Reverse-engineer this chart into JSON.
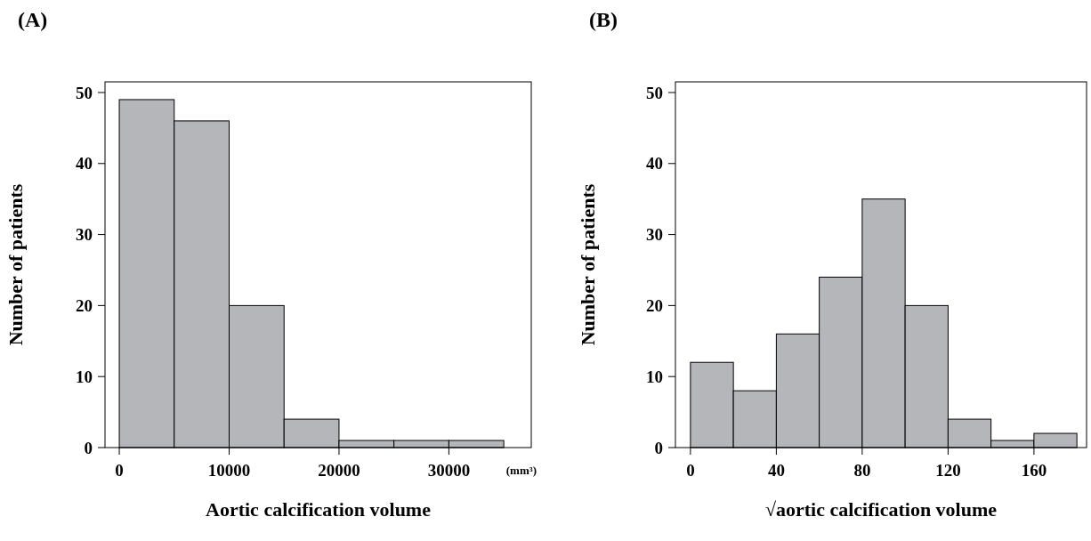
{
  "chart_data": [
    {
      "type": "histogram",
      "title": "(A)",
      "xlabel": "Aortic calcification volume",
      "ylabel": "Number of patients",
      "annotations": [
        "(mm³)"
      ],
      "color": "#b5b6ba",
      "bins": [
        0,
        5000,
        10000,
        15000,
        20000,
        25000,
        30000,
        35000
      ],
      "values": [
        49,
        46,
        20,
        4,
        1,
        1,
        1
      ],
      "xlim": [
        -1300,
        37500
      ],
      "xticks": [
        0,
        10000,
        20000,
        30000
      ],
      "ylim": [
        0,
        51.5
      ],
      "yticks": [
        0,
        10,
        20,
        30,
        40,
        50
      ]
    },
    {
      "type": "histogram",
      "title": "(B)",
      "xlabel": "√aortic calcification volume",
      "ylabel": "Number of patients",
      "color": "#b5b6ba",
      "bins": [
        0,
        20,
        40,
        60,
        80,
        100,
        120,
        140,
        160,
        180
      ],
      "values": [
        12,
        8,
        16,
        24,
        35,
        20,
        4,
        1,
        2
      ],
      "xlim": [
        -7,
        184.5
      ],
      "xticks": [
        0,
        40,
        80,
        120,
        160
      ],
      "ylim": [
        0,
        51.5
      ],
      "yticks": [
        0,
        10,
        20,
        30,
        40,
        50
      ]
    }
  ]
}
